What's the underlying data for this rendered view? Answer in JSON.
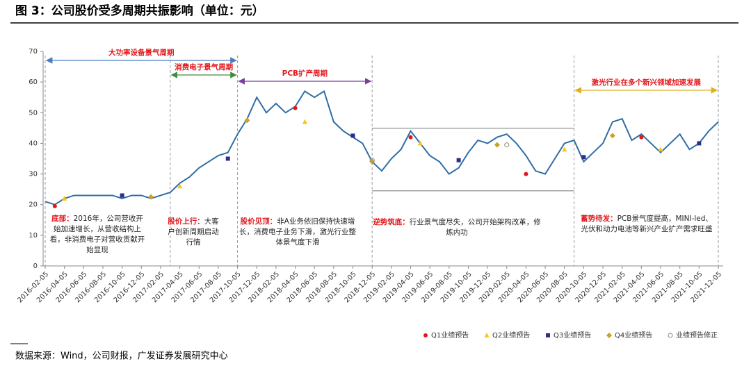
{
  "chart_data": {
    "type": "line",
    "title": "图 3：公司股价受多周期共振影响（单位：元）",
    "source": "数据来源：Wind，公司财报，广发证券发展研究中心",
    "x": [
      "2016-02-05",
      "2016-03-05",
      "2016-04-05",
      "2016-05-05",
      "2016-06-05",
      "2016-07-05",
      "2016-08-05",
      "2016-09-05",
      "2016-10-05",
      "2016-11-05",
      "2016-12-05",
      "2017-01-05",
      "2017-02-05",
      "2017-03-05",
      "2017-04-05",
      "2017-05-05",
      "2017-06-05",
      "2017-07-05",
      "2017-08-05",
      "2017-09-05",
      "2017-10-05",
      "2017-11-05",
      "2017-12-05",
      "2018-01-05",
      "2018-02-05",
      "2018-03-05",
      "2018-04-05",
      "2018-05-05",
      "2018-06-05",
      "2018-07-05",
      "2018-08-05",
      "2018-09-05",
      "2018-10-05",
      "2018-11-05",
      "2018-12-05",
      "2019-01-05",
      "2019-02-05",
      "2019-03-05",
      "2019-04-05",
      "2019-05-05",
      "2019-06-05",
      "2019-07-05",
      "2019-08-05",
      "2019-09-05",
      "2019-10-05",
      "2019-11-05",
      "2019-12-05",
      "2020-01-05",
      "2020-02-05",
      "2020-03-05",
      "2020-04-05",
      "2020-05-05",
      "2020-06-05",
      "2020-07-05",
      "2020-08-05",
      "2020-09-05",
      "2020-10-05",
      "2020-11-05",
      "2020-12-05",
      "2021-01-05",
      "2021-02-05",
      "2021-03-05",
      "2021-04-05",
      "2021-05-05",
      "2021-06-05",
      "2021-07-05",
      "2021-08-05",
      "2021-09-05",
      "2021-10-05",
      "2021-11-05",
      "2021-12-05"
    ],
    "xticks": [
      "2016-02-05",
      "2016-04-05",
      "2016-06-05",
      "2016-08-05",
      "2016-10-05",
      "2016-12-05",
      "2017-02-05",
      "2017-04-05",
      "2017-06-05",
      "2017-08-05",
      "2017-10-05",
      "2017-12-05",
      "2018-02-05",
      "2018-04-05",
      "2018-06-05",
      "2018-08-05",
      "2018-10-05",
      "2018-12-05",
      "2019-02-05",
      "2019-04-05",
      "2019-06-05",
      "2019-08-05",
      "2019-10-05",
      "2019-12-05",
      "2020-02-05",
      "2020-04-05",
      "2020-06-05",
      "2020-08-05",
      "2020-10-05",
      "2020-12-05",
      "2021-02-05",
      "2021-04-05",
      "2021-06-05",
      "2021-08-05",
      "2021-10-05",
      "2021-12-05"
    ],
    "series": [
      {
        "color": "#2e6da4",
        "values": [
          21,
          20,
          22,
          23,
          23,
          23,
          23,
          23,
          22,
          23,
          23,
          22,
          23,
          24,
          27,
          29,
          32,
          34,
          36,
          37,
          43,
          48,
          55,
          50,
          53,
          50,
          52,
          57,
          55,
          57,
          47,
          44,
          42,
          40,
          34,
          31,
          35,
          38,
          44,
          40,
          36,
          34,
          30,
          32,
          37,
          41,
          40,
          42,
          43,
          40,
          36,
          31,
          30,
          35,
          40,
          41,
          34,
          37,
          40,
          47,
          48,
          41,
          43,
          40,
          37,
          40,
          43,
          38,
          40,
          44,
          47
        ]
      }
    ],
    "markers": [
      {
        "name": "Q1业绩预告",
        "color": "#e3161b",
        "shape": "circle",
        "x": [
          "2016-03-05",
          "2018-04-05",
          "2019-04-05",
          "2020-04-05",
          "2021-04-05"
        ],
        "values": [
          19.5,
          51.5,
          42,
          30,
          42
        ]
      },
      {
        "name": "Q2业绩预告",
        "color": "#f5c518",
        "shape": "triangle",
        "x": [
          "2016-04-05",
          "2017-04-05",
          "2018-05-05",
          "2019-05-05",
          "2020-08-05",
          "2021-06-05"
        ],
        "values": [
          22,
          26,
          47,
          40,
          38,
          38
        ]
      },
      {
        "name": "Q3业绩预告",
        "color": "#2b2f8f",
        "shape": "square",
        "x": [
          "2016-10-05",
          "2017-09-05",
          "2018-10-05",
          "2019-09-05",
          "2020-10-05",
          "2021-10-05"
        ],
        "values": [
          23,
          35,
          42.5,
          34.5,
          35.5,
          40
        ]
      },
      {
        "name": "Q4业绩预告",
        "color": "#c9a227",
        "shape": "diamond",
        "x": [
          "2017-01-05",
          "2017-11-05",
          "2018-12-05",
          "2020-01-05",
          "2021-01-05"
        ],
        "values": [
          22.5,
          47.5,
          34,
          39.5,
          42.5
        ]
      },
      {
        "name": "业绩预告修正",
        "color": "#a09a80",
        "shape": "hollow",
        "x": [
          "2018-12-05",
          "2020-02-05"
        ],
        "values": [
          34.5,
          39.5
        ]
      }
    ],
    "ylim": [
      0,
      70
    ],
    "yticks": [
      0,
      10,
      20,
      30,
      40,
      50,
      60,
      70
    ],
    "reference_lines": [
      45,
      24.5
    ],
    "periods": [
      {
        "label": "大功率设备景气周期",
        "color": "#4a7cc0"
      },
      {
        "label": "消费电子景气周期",
        "color": "#3f8f3a"
      },
      {
        "label": "PCB扩产周期",
        "color": "#7a3fa0"
      },
      {
        "label": "激光行业在多个新兴领域加速发展",
        "color": "#e0b020"
      }
    ],
    "notes": [
      {
        "label": "底部：",
        "text": "2016年，公司营收开始加速增长，从营收结构上看，非消费电子对营收贡献开始显现"
      },
      {
        "label": "股价上行：",
        "text": "大客户创新周期启动行情"
      },
      {
        "label": "股价见顶：",
        "text": "非A业务依旧保持快速增长，消费电子业务下滑，激光行业整体景气度下滑"
      },
      {
        "label": "逆势筑底：",
        "text": "行业景气度尽失，公司开始架构改革，修炼内功"
      },
      {
        "label": "蓄势待发：",
        "text": "PCB景气度提高，MINI-led、光伏和动力电池等新兴产业扩产需求旺盛"
      }
    ]
  }
}
